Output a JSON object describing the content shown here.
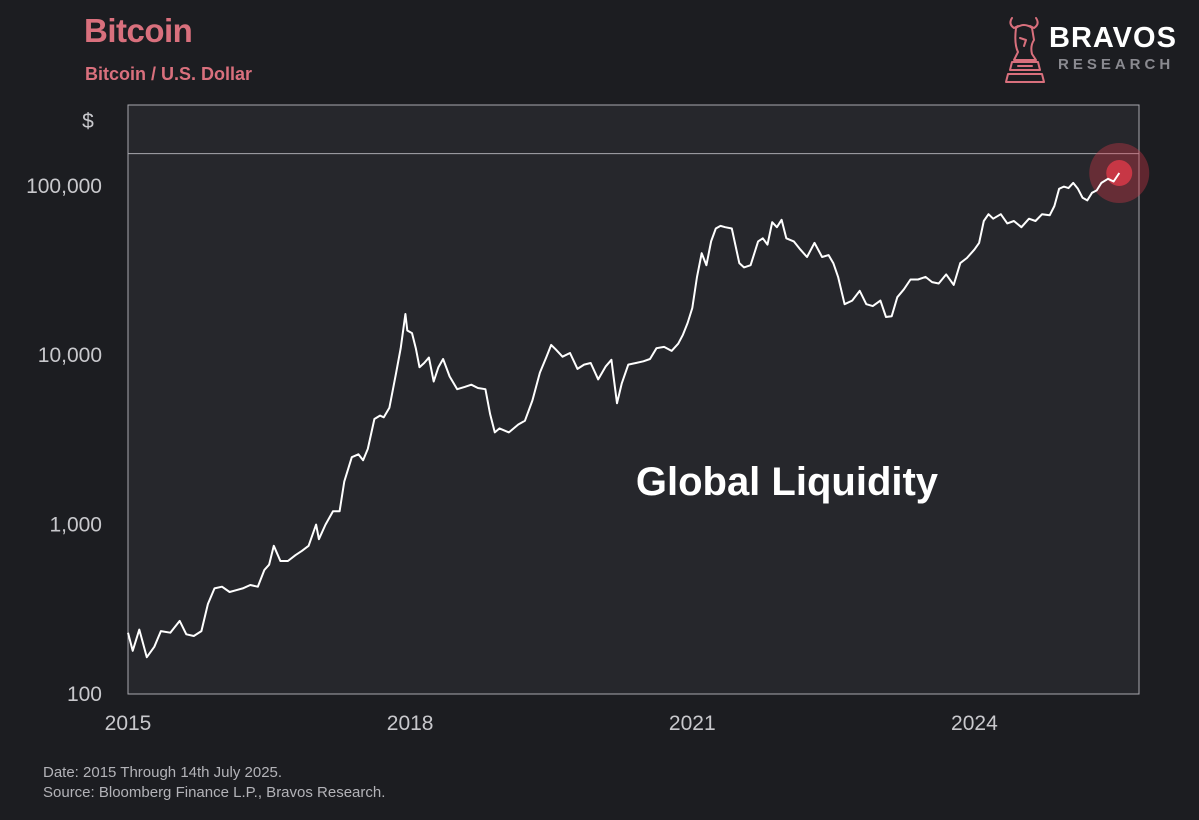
{
  "header": {
    "title": "Bitcoin",
    "subtitle": "Bitcoin / U.S. Dollar"
  },
  "brand": {
    "name": "BRAVOS",
    "sub": "RESEARCH",
    "logo_icon": "bull-knight-icon"
  },
  "footer": {
    "date": "Date: 2015 Through 14th July 2025.",
    "source": "Source: Bloomberg Finance L.P., Bravos Research."
  },
  "colors": {
    "background": "#1c1d21",
    "plot_background": "#26272c",
    "accent": "#d9707d",
    "line": "#ffffff",
    "grid": "#a8a8ae",
    "tick_text": "#c8c8cc",
    "highlight": "#e0394a"
  },
  "chart_data": {
    "type": "line",
    "title": "Bitcoin",
    "subtitle": "Bitcoin / U.S. Dollar",
    "ylabel": "$",
    "xlabel": "",
    "y_scale": "log",
    "ylim": [
      100,
      300000
    ],
    "xlim": [
      2015.0,
      2025.75
    ],
    "x_ticks": [
      {
        "value": 2015,
        "label": "2015"
      },
      {
        "value": 2018,
        "label": "2018"
      },
      {
        "value": 2021,
        "label": "2021"
      },
      {
        "value": 2024,
        "label": "2024"
      }
    ],
    "y_ticks": [
      {
        "value": 100,
        "label": "100"
      },
      {
        "value": 1000,
        "label": "1,000"
      },
      {
        "value": 10000,
        "label": "10,000"
      },
      {
        "value": 100000,
        "label": "100,000"
      }
    ],
    "reference_line": {
      "value": 155000
    },
    "annotation": {
      "text": "Global Liquidity",
      "x": 2020.4,
      "y": 1500
    },
    "highlight_point": {
      "x": 2025.54,
      "y": 119000
    },
    "grid": false,
    "legend": "none",
    "series": [
      {
        "x": [
          2015.0,
          2015.05,
          2015.12,
          2015.2,
          2015.28,
          2015.35,
          2015.45,
          2015.55,
          2015.62,
          2015.7,
          2015.78,
          2015.85,
          2015.92,
          2016.0,
          2016.08,
          2016.15,
          2016.22,
          2016.3,
          2016.38,
          2016.45,
          2016.5,
          2016.55,
          2016.62,
          2016.7,
          2016.78,
          2016.85,
          2016.92,
          2017.0,
          2017.03,
          2017.1,
          2017.18,
          2017.25,
          2017.3,
          2017.38,
          2017.45,
          2017.5,
          2017.55,
          2017.62,
          2017.68,
          2017.72,
          2017.78,
          2017.85,
          2017.9,
          2017.95,
          2017.97,
          2018.02,
          2018.06,
          2018.1,
          2018.15,
          2018.2,
          2018.25,
          2018.3,
          2018.35,
          2018.42,
          2018.5,
          2018.58,
          2018.65,
          2018.72,
          2018.8,
          2018.85,
          2018.9,
          2018.95,
          2019.05,
          2019.15,
          2019.22,
          2019.3,
          2019.38,
          2019.45,
          2019.5,
          2019.55,
          2019.62,
          2019.7,
          2019.78,
          2019.85,
          2019.92,
          2020.0,
          2020.08,
          2020.14,
          2020.2,
          2020.25,
          2020.32,
          2020.4,
          2020.48,
          2020.55,
          2020.62,
          2020.7,
          2020.78,
          2020.85,
          2020.9,
          2020.95,
          2021.0,
          2021.05,
          2021.1,
          2021.15,
          2021.2,
          2021.25,
          2021.3,
          2021.35,
          2021.42,
          2021.5,
          2021.55,
          2021.62,
          2021.7,
          2021.75,
          2021.8,
          2021.85,
          2021.9,
          2021.95,
          2022.0,
          2022.08,
          2022.15,
          2022.22,
          2022.3,
          2022.38,
          2022.45,
          2022.5,
          2022.55,
          2022.62,
          2022.7,
          2022.78,
          2022.85,
          2022.92,
          2023.0,
          2023.06,
          2023.12,
          2023.18,
          2023.25,
          2023.32,
          2023.4,
          2023.48,
          2023.55,
          2023.62,
          2023.7,
          2023.78,
          2023.85,
          2023.92,
          2024.0,
          2024.05,
          2024.1,
          2024.15,
          2024.2,
          2024.28,
          2024.35,
          2024.42,
          2024.5,
          2024.58,
          2024.65,
          2024.72,
          2024.8,
          2024.85,
          2024.9,
          2024.95,
          2025.0,
          2025.05,
          2025.1,
          2025.15,
          2025.2,
          2025.25,
          2025.3,
          2025.35,
          2025.42,
          2025.48,
          2025.54
        ],
        "y": [
          230,
          180,
          240,
          165,
          190,
          235,
          230,
          270,
          225,
          220,
          235,
          340,
          420,
          430,
          400,
          410,
          420,
          440,
          430,
          540,
          580,
          750,
          610,
          610,
          660,
          700,
          750,
          1000,
          820,
          1000,
          1200,
          1200,
          1800,
          2500,
          2600,
          2400,
          2800,
          4200,
          4400,
          4300,
          4900,
          7800,
          11000,
          17500,
          14000,
          13500,
          11000,
          8500,
          9000,
          9700,
          7000,
          8500,
          9500,
          7500,
          6300,
          6500,
          6700,
          6400,
          6300,
          4500,
          3500,
          3700,
          3500,
          3900,
          4100,
          5400,
          7900,
          9800,
          11500,
          10800,
          9800,
          10300,
          8300,
          8800,
          9000,
          7200,
          8600,
          9400,
          5200,
          6800,
          8800,
          9000,
          9200,
          9500,
          11000,
          11200,
          10600,
          11700,
          13200,
          15500,
          19000,
          29000,
          40000,
          34000,
          47000,
          56000,
          58000,
          57000,
          56000,
          35000,
          33000,
          34000,
          47000,
          49000,
          45000,
          61000,
          57000,
          63000,
          49000,
          47000,
          42000,
          38000,
          46000,
          38000,
          39000,
          35000,
          29000,
          20000,
          21000,
          24000,
          20000,
          19500,
          21000,
          16800,
          17000,
          22000,
          24500,
          28000,
          28000,
          29000,
          27000,
          26500,
          30000,
          26000,
          35000,
          37500,
          42000,
          46000,
          62000,
          68000,
          64000,
          68000,
          60000,
          62000,
          57000,
          64000,
          62000,
          68000,
          67000,
          76000,
          96000,
          99000,
          97000,
          104000,
          96000,
          85000,
          82000,
          91000,
          94000,
          104000,
          110000,
          106000,
          119000
        ]
      }
    ]
  }
}
